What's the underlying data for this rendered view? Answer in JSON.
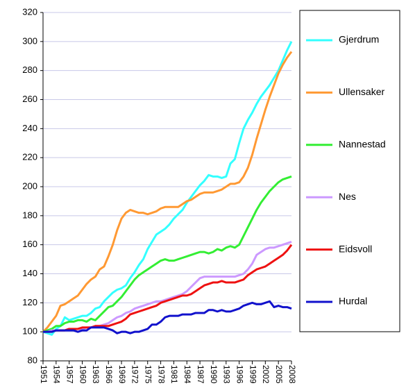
{
  "chart_data": {
    "type": "line",
    "x": [
      1951,
      1952,
      1953,
      1954,
      1955,
      1956,
      1957,
      1958,
      1959,
      1960,
      1961,
      1962,
      1963,
      1964,
      1965,
      1966,
      1967,
      1968,
      1969,
      1970,
      1971,
      1972,
      1973,
      1974,
      1975,
      1976,
      1977,
      1978,
      1979,
      1980,
      1981,
      1982,
      1983,
      1984,
      1985,
      1986,
      1987,
      1988,
      1989,
      1990,
      1991,
      1992,
      1993,
      1994,
      1995,
      1996,
      1997,
      1998,
      1999,
      2000,
      2001,
      2002,
      2003,
      2004,
      2005,
      2006,
      2007,
      2008
    ],
    "xlim": [
      1951,
      2008
    ],
    "xticks": [
      1951,
      1954,
      1957,
      1960,
      1963,
      1966,
      1969,
      1972,
      1975,
      1978,
      1981,
      1984,
      1987,
      1990,
      1993,
      1996,
      1999,
      2002,
      2005,
      2008
    ],
    "ylim": [
      80,
      320
    ],
    "yticks": [
      80,
      100,
      120,
      140,
      160,
      180,
      200,
      220,
      240,
      260,
      280,
      300,
      320
    ],
    "grid": true,
    "legend": "right",
    "series": [
      {
        "name": "Gjerdrum",
        "color": "#33ffff",
        "values": [
          100,
          99,
          98,
          102,
          104,
          110,
          108,
          109,
          110,
          111,
          111,
          113,
          116,
          117,
          121,
          124,
          127,
          129,
          130,
          132,
          137,
          141,
          146,
          150,
          157,
          162,
          167,
          169,
          171,
          174,
          178,
          181,
          184,
          189,
          193,
          197,
          201,
          204,
          208,
          207,
          207,
          206,
          207,
          216,
          219,
          230,
          240,
          246,
          251,
          257,
          262,
          266,
          270,
          275,
          280,
          287,
          294,
          300
        ]
      },
      {
        "name": "Ullensaker",
        "color": "#ff9933",
        "values": [
          100,
          103,
          107,
          111,
          118,
          119,
          121,
          123,
          125,
          129,
          133,
          136,
          138,
          143,
          145,
          152,
          160,
          170,
          178,
          182,
          184,
          183,
          182,
          182,
          181,
          182,
          183,
          185,
          186,
          186,
          186,
          186,
          188,
          190,
          191,
          193,
          195,
          196,
          196,
          196,
          197,
          198,
          200,
          202,
          202,
          203,
          207,
          213,
          222,
          233,
          243,
          253,
          262,
          270,
          278,
          284,
          289,
          293
        ]
      },
      {
        "name": "Nannestad",
        "color": "#33ee33",
        "values": [
          100,
          101,
          102,
          104,
          104,
          106,
          107,
          107,
          108,
          108,
          107,
          109,
          108,
          111,
          114,
          117,
          118,
          121,
          124,
          128,
          132,
          136,
          139,
          141,
          143,
          145,
          147,
          149,
          150,
          149,
          149,
          150,
          151,
          152,
          153,
          154,
          155,
          155,
          154,
          155,
          157,
          156,
          158,
          159,
          158,
          160,
          166,
          172,
          178,
          184,
          189,
          193,
          197,
          200,
          203,
          205,
          206,
          207
        ]
      },
      {
        "name": "Nes",
        "color": "#cc99ff",
        "values": [
          100,
          100,
          101,
          101,
          101,
          101,
          102,
          102,
          102,
          102,
          103,
          103,
          104,
          104,
          105,
          106,
          108,
          110,
          111,
          113,
          114,
          116,
          117,
          118,
          119,
          120,
          121,
          121,
          122,
          123,
          124,
          125,
          126,
          128,
          131,
          134,
          137,
          138,
          138,
          138,
          138,
          138,
          138,
          138,
          138,
          139,
          140,
          143,
          147,
          153,
          155,
          157,
          158,
          158,
          159,
          160,
          161,
          162
        ]
      },
      {
        "name": "Eidsvoll",
        "color": "#ee1111",
        "values": [
          100,
          100,
          100,
          101,
          101,
          101,
          102,
          102,
          102,
          103,
          103,
          103,
          104,
          104,
          104,
          104,
          105,
          106,
          107,
          109,
          112,
          113,
          114,
          115,
          116,
          117,
          118,
          120,
          121,
          122,
          123,
          124,
          125,
          125,
          126,
          128,
          130,
          132,
          133,
          134,
          134,
          135,
          134,
          134,
          134,
          135,
          136,
          139,
          141,
          143,
          144,
          145,
          147,
          149,
          151,
          153,
          156,
          160
        ]
      },
      {
        "name": "Hurdal",
        "color": "#1111cc",
        "values": [
          100,
          100,
          100,
          101,
          101,
          101,
          101,
          101,
          100,
          101,
          101,
          103,
          103,
          103,
          103,
          102,
          101,
          99,
          100,
          100,
          99,
          100,
          100,
          101,
          102,
          105,
          105,
          107,
          110,
          111,
          111,
          111,
          112,
          112,
          112,
          113,
          113,
          113,
          115,
          115,
          114,
          115,
          114,
          114,
          115,
          116,
          118,
          119,
          120,
          119,
          119,
          120,
          121,
          117,
          118,
          117,
          117,
          116
        ]
      }
    ]
  }
}
